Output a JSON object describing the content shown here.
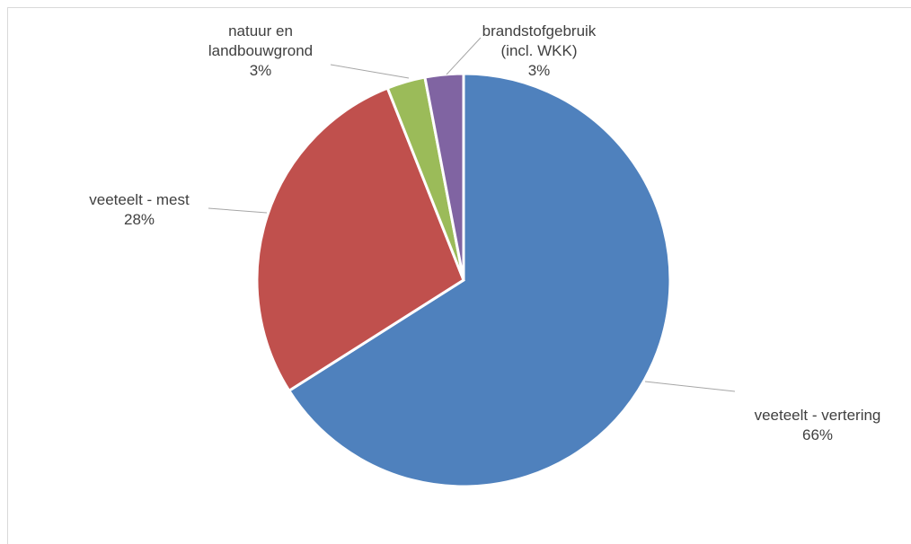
{
  "chart_data": {
    "type": "pie",
    "categories": [
      "veeteelt - vertering",
      "veeteelt - mest",
      "natuur en landbouwgrond",
      "brandstofgebruik (incl. WKK)"
    ],
    "values": [
      66,
      28,
      3,
      3
    ],
    "value_labels": [
      "66%",
      "28%",
      "3%",
      "3%"
    ],
    "colors": [
      "#4f81bd",
      "#c0504d",
      "#9bbb59",
      "#8064a2"
    ]
  }
}
